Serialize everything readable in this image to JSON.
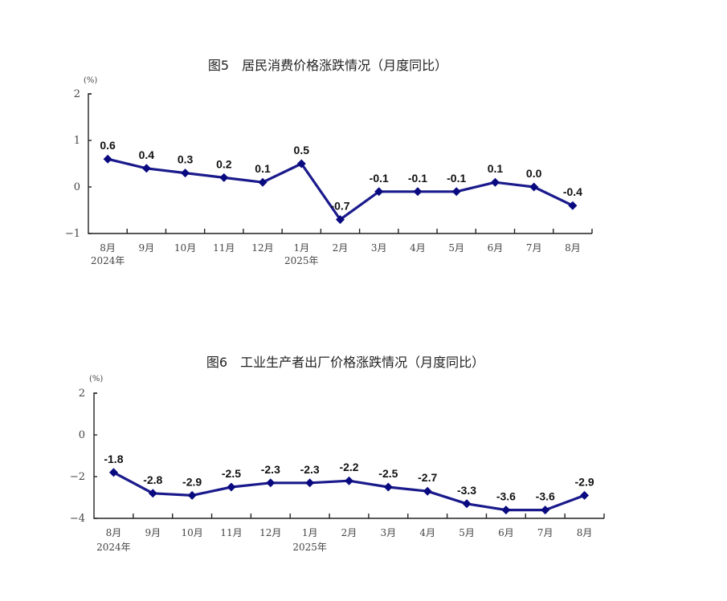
{
  "chart_data": [
    {
      "type": "line",
      "title": "图5　居民消费价格涨跌情况（月度同比）",
      "ylabel": "(%)",
      "xlabel": "",
      "ylim": [
        -1,
        2
      ],
      "yticks": [
        2,
        1,
        0,
        -1
      ],
      "categories": [
        "8月",
        "9月",
        "10月",
        "11月",
        "12月",
        "1月",
        "2月",
        "3月",
        "4月",
        "5月",
        "6月",
        "7月",
        "8月"
      ],
      "year_labels": {
        "0": "2024年",
        "5": "2025年"
      },
      "series": [
        {
          "name": "居民消费价格同比",
          "values": [
            0.6,
            0.4,
            0.3,
            0.2,
            0.1,
            0.5,
            -0.7,
            -0.1,
            -0.1,
            -0.1,
            0.1,
            0.0,
            -0.4
          ],
          "labels": [
            "0.6",
            "0.4",
            "0.3",
            "0.2",
            "0.1",
            "0.5",
            "-0.7",
            "-0.1",
            "-0.1",
            "-0.1",
            "0.1",
            "0.0",
            "-0.4"
          ]
        }
      ],
      "grid": false,
      "legend": "none",
      "color": "#1a1a8c"
    },
    {
      "type": "line",
      "title": "图6　工业生产者出厂价格涨跌情况（月度同比）",
      "ylabel": "(%)",
      "xlabel": "",
      "ylim": [
        -4,
        2
      ],
      "yticks": [
        2,
        0,
        -2,
        -4
      ],
      "categories": [
        "8月",
        "9月",
        "10月",
        "11月",
        "12月",
        "1月",
        "2月",
        "3月",
        "4月",
        "5月",
        "6月",
        "7月",
        "8月"
      ],
      "year_labels": {
        "0": "2024年",
        "5": "2025年"
      },
      "series": [
        {
          "name": "工业生产者出厂价格同比",
          "values": [
            -1.8,
            -2.8,
            -2.9,
            -2.5,
            -2.3,
            -2.3,
            -2.2,
            -2.5,
            -2.7,
            -3.3,
            -3.6,
            -3.6,
            -2.9
          ],
          "labels": [
            "-1.8",
            "-2.8",
            "-2.9",
            "-2.5",
            "-2.3",
            "-2.3",
            "-2.2",
            "-2.5",
            "-2.7",
            "-3.3",
            "-3.6",
            "-3.6",
            "-2.9"
          ]
        }
      ],
      "grid": false,
      "legend": "none",
      "color": "#1a1a8c"
    }
  ]
}
